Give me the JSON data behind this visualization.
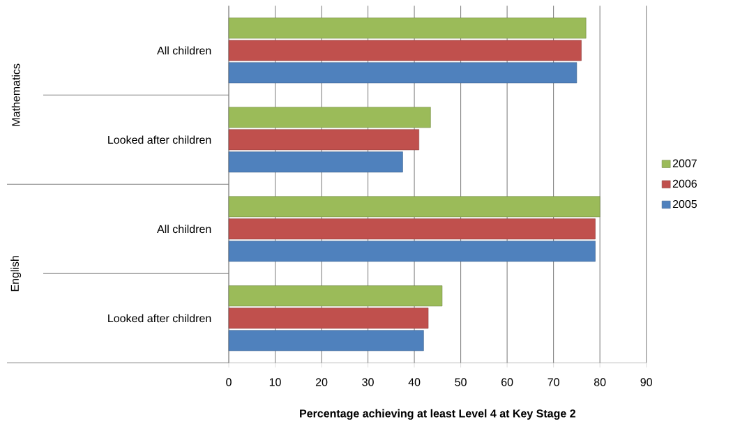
{
  "chart_data": {
    "type": "bar",
    "orientation": "horizontal",
    "xlabel": "Percentage achieving at least Level 4 at Key Stage 2",
    "categories": [
      "All children",
      "Looked after children",
      "All children",
      "Looked after children"
    ],
    "annotations": [
      "Mathematics",
      "English"
    ],
    "series": [
      {
        "name": "2005",
        "color": "#4f81bd",
        "values": [
          75,
          37.5,
          79,
          42
        ]
      },
      {
        "name": "2006",
        "color": "#c0504d",
        "values": [
          76,
          41,
          79,
          43
        ]
      },
      {
        "name": "2007",
        "color": "#9bbb59",
        "values": [
          77,
          43.5,
          80,
          46
        ]
      }
    ],
    "xlim": [
      0,
      90
    ],
    "xticks": [
      0,
      10,
      20,
      30,
      40,
      50,
      60,
      70,
      80,
      90
    ],
    "grid": "x",
    "legend": "right"
  }
}
